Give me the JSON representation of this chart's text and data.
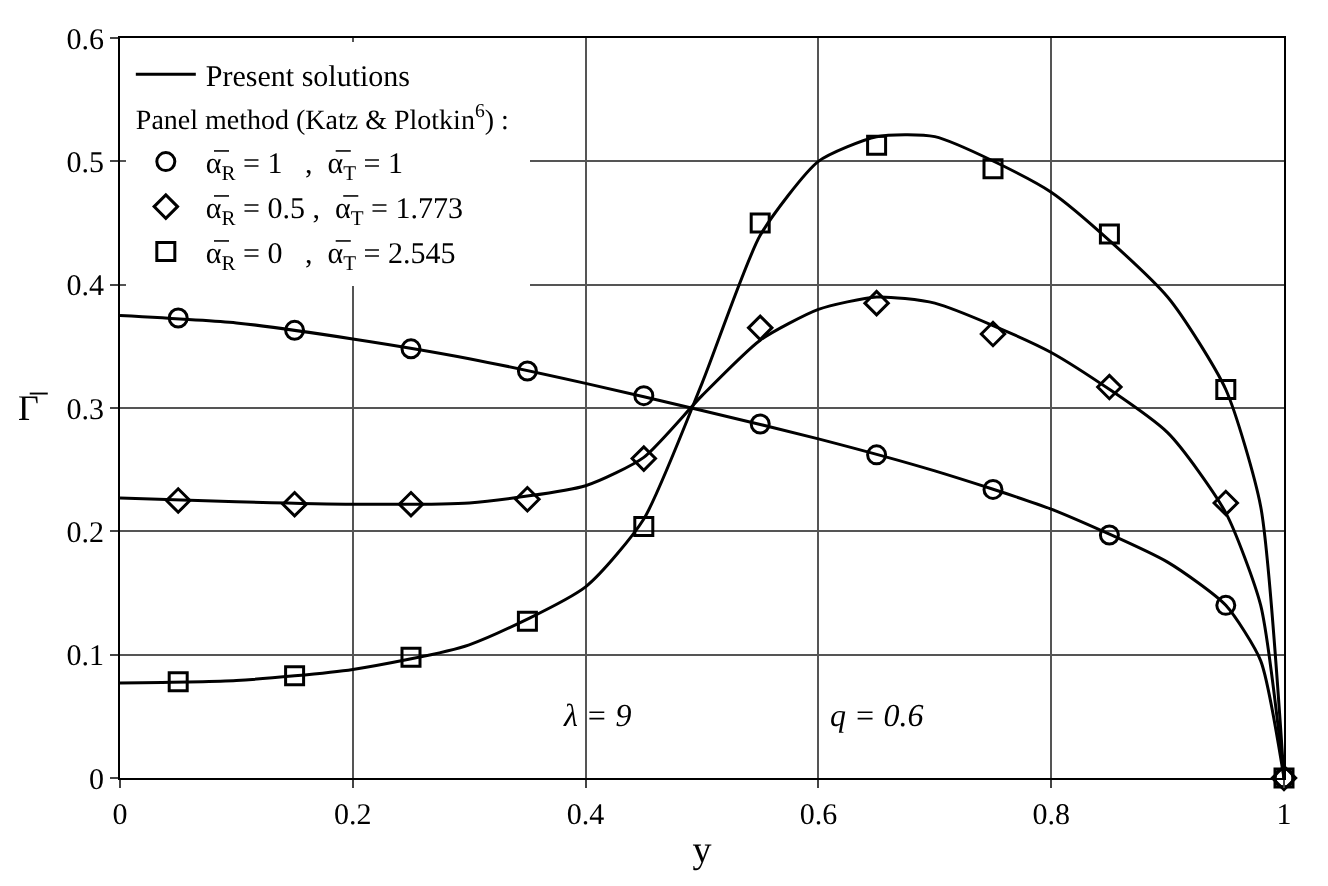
{
  "chart_data": {
    "type": "line",
    "xlabel": "y",
    "ylabel": "Γ̅",
    "legend_title": "Panel method (Katz & Plotkin$^{6}$) :",
    "xlim": [
      0,
      1
    ],
    "ylim": [
      0,
      0.6
    ],
    "xticks": [
      0,
      0.2,
      0.4,
      0.6,
      0.8,
      1
    ],
    "yticks": [
      0,
      0.1,
      0.2,
      0.3,
      0.4,
      0.5,
      0.6
    ],
    "grid": true,
    "legend": "top left",
    "annotations": [
      "λ = 9",
      "q = 0.6"
    ],
    "series": [
      {
        "name": "Present solutions",
        "color": "#000000",
        "marker": "none",
        "x": [
          0,
          0.1,
          0.2,
          0.3,
          0.4,
          0.5,
          0.6,
          0.7,
          0.8,
          0.9,
          0.95,
          0.98,
          1
        ],
        "values": [
          0.375,
          0.369,
          0.356,
          0.34,
          0.32,
          0.298,
          0.275,
          0.249,
          0.218,
          0.175,
          0.14,
          0.095,
          0
        ]
      },
      {
        "color": "#000000",
        "marker": "none",
        "x": [
          0,
          0.1,
          0.2,
          0.3,
          0.4,
          0.45,
          0.5,
          0.55,
          0.6,
          0.65,
          0.7,
          0.8,
          0.9,
          0.95,
          0.98,
          1
        ],
        "values": [
          0.227,
          0.224,
          0.222,
          0.223,
          0.237,
          0.26,
          0.31,
          0.355,
          0.38,
          0.39,
          0.385,
          0.345,
          0.28,
          0.215,
          0.14,
          0
        ]
      },
      {
        "color": "#000000",
        "marker": "none",
        "x": [
          0,
          0.1,
          0.2,
          0.3,
          0.4,
          0.45,
          0.5,
          0.55,
          0.6,
          0.65,
          0.7,
          0.8,
          0.9,
          0.95,
          0.98,
          1
        ],
        "values": [
          0.077,
          0.079,
          0.088,
          0.108,
          0.155,
          0.21,
          0.32,
          0.44,
          0.5,
          0.52,
          0.52,
          0.475,
          0.39,
          0.315,
          0.22,
          0
        ]
      },
      {
        "name": "α̅$_{R}$ = 1   ,  α̅$_{T}$ = 1",
        "type": "scatter",
        "color": "#000000",
        "marker": "circle",
        "x": [
          0.05,
          0.15,
          0.25,
          0.35,
          0.45,
          0.55,
          0.65,
          0.75,
          0.85,
          0.95,
          1
        ],
        "values": [
          0.373,
          0.363,
          0.348,
          0.33,
          0.31,
          0.287,
          0.262,
          0.234,
          0.197,
          0.14,
          0
        ]
      },
      {
        "name": "α̅$_{R}$ = 0.5 ,  α̅$_{T}$ = 1.773",
        "type": "scatter",
        "color": "#000000",
        "marker": "diamond",
        "x": [
          0.05,
          0.15,
          0.25,
          0.35,
          0.45,
          0.55,
          0.65,
          0.75,
          0.85,
          0.95,
          1
        ],
        "values": [
          0.225,
          0.222,
          0.222,
          0.226,
          0.259,
          0.365,
          0.385,
          0.36,
          0.317,
          0.223,
          0
        ]
      },
      {
        "name": "α̅$_{R}$ = 0   ,  α̅$_{T}$ = 2.545",
        "type": "scatter",
        "color": "#000000",
        "marker": "square",
        "x": [
          0.05,
          0.15,
          0.25,
          0.35,
          0.45,
          0.55,
          0.65,
          0.75,
          0.85,
          0.95,
          1
        ],
        "values": [
          0.078,
          0.083,
          0.098,
          0.127,
          0.204,
          0.45,
          0.513,
          0.494,
          0.441,
          0.315,
          0
        ]
      }
    ]
  }
}
